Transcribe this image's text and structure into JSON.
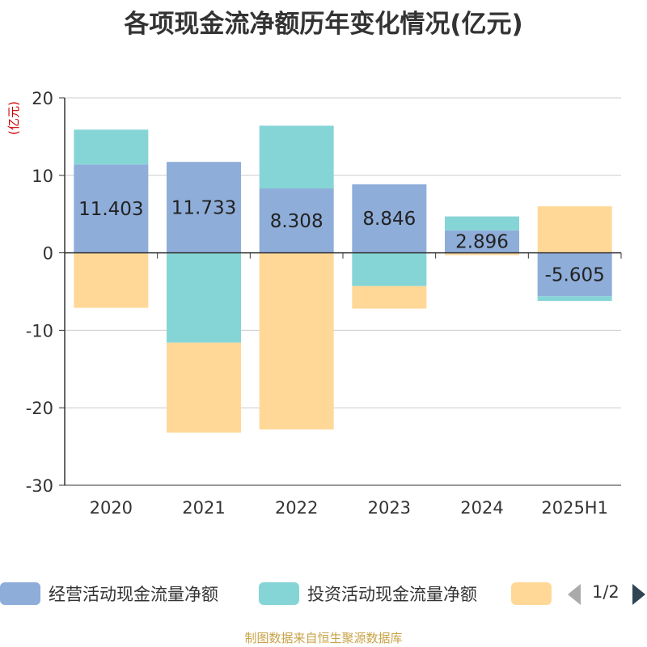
{
  "title": "各项现金流净额历年变化情况(亿元)",
  "source": "制图数据来自恒生聚源数据库",
  "pager": "1/2",
  "colors": {
    "operating": "#8eadd9",
    "investing": "#86d5d6",
    "financing": "#ffd898",
    "axis": "#333333",
    "grid": "#cccccc",
    "unit": "#cc0000"
  },
  "chart_data": {
    "type": "bar",
    "stacked": true,
    "title": "各项现金流净额历年变化情况(亿元)",
    "ylabel": "(亿元)",
    "ylim": [
      -30,
      20
    ],
    "yticks": [
      20,
      10,
      0,
      -10,
      -20,
      -30
    ],
    "grid": true,
    "legend_position": "bottom",
    "categories": [
      "2020",
      "2021",
      "2022",
      "2023",
      "2024",
      "2025H1"
    ],
    "series": [
      {
        "name": "经营活动现金流量净额",
        "color": "#8eadd9",
        "values": [
          11.403,
          11.733,
          8.308,
          8.846,
          2.896,
          -5.605
        ],
        "show_labels": true
      },
      {
        "name": "投资活动现金流量净额",
        "color": "#86d5d6",
        "values": [
          4.5,
          -11.6,
          8.1,
          -4.3,
          1.8,
          -0.6
        ],
        "show_labels": false
      },
      {
        "name": "",
        "color": "#ffd898",
        "values": [
          -7.1,
          -11.6,
          -22.8,
          -2.9,
          -0.3,
          6.0
        ],
        "show_labels": false
      }
    ]
  }
}
